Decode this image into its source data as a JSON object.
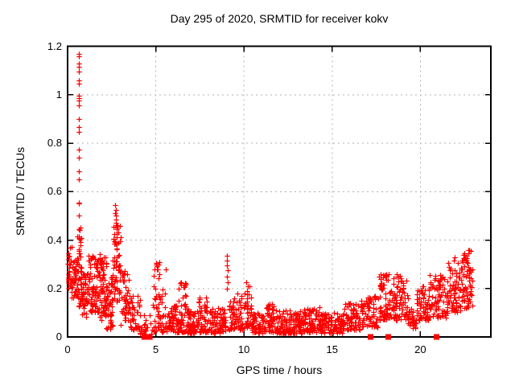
{
  "chart_data": {
    "type": "scatter",
    "title": "Day 295 of 2020, SRMTID for receiver kokv",
    "xlabel": "GPS time / hours",
    "ylabel": "SRMTID / TECUs",
    "xlim": [
      0,
      24
    ],
    "ylim": [
      0,
      1.2
    ],
    "xticks": [
      {
        "v": 0,
        "label": "0"
      },
      {
        "v": 5,
        "label": "5"
      },
      {
        "v": 10,
        "label": "10"
      },
      {
        "v": 15,
        "label": "15"
      },
      {
        "v": 20,
        "label": "20"
      }
    ],
    "yticks": [
      {
        "v": 0,
        "label": "0"
      },
      {
        "v": 0.2,
        "label": "0.2"
      },
      {
        "v": 0.4,
        "label": "0.4"
      },
      {
        "v": 0.6,
        "label": "0.6"
      },
      {
        "v": 0.8,
        "label": "0.8"
      },
      {
        "v": 1.0,
        "label": "1"
      },
      {
        "v": 1.2,
        "label": "1.2"
      }
    ],
    "grid": true,
    "legend": "none",
    "marker": "plus",
    "marker_color": "#ff0000",
    "grid_color": "#b0b0b0",
    "axis_color": "#000000",
    "background": "#ffffff",
    "seed": 1337,
    "highlight_points": [
      [
        0.62,
        1.17
      ],
      [
        0.66,
        1.16
      ],
      [
        0.64,
        1.13
      ],
      [
        0.65,
        1.115
      ],
      [
        0.63,
        1.095
      ],
      [
        0.66,
        1.06
      ],
      [
        0.64,
        1.045
      ],
      [
        0.62,
        0.995
      ],
      [
        0.655,
        0.985
      ],
      [
        0.64,
        0.975
      ],
      [
        0.65,
        0.955
      ],
      [
        0.64,
        0.9
      ],
      [
        0.66,
        0.865
      ],
      [
        0.65,
        0.845
      ],
      [
        0.66,
        0.775
      ],
      [
        0.64,
        0.74
      ],
      [
        0.65,
        0.685
      ],
      [
        0.66,
        0.65
      ],
      [
        0.62,
        0.555
      ],
      [
        0.66,
        0.55
      ],
      [
        0.64,
        0.5
      ],
      [
        0.63,
        0.445
      ],
      [
        0.67,
        0.44
      ],
      [
        0.65,
        0.415
      ],
      [
        2.7,
        0.545
      ],
      [
        2.73,
        0.525
      ],
      [
        2.71,
        0.51
      ],
      [
        2.74,
        0.5
      ],
      [
        2.76,
        0.485
      ],
      [
        2.72,
        0.47
      ],
      [
        2.78,
        0.46
      ],
      [
        2.8,
        0.45
      ],
      [
        9.02,
        0.335
      ],
      [
        9.05,
        0.315
      ],
      [
        9.03,
        0.295
      ],
      [
        9.06,
        0.275
      ],
      [
        9.04,
        0.25
      ],
      [
        9.07,
        0.225
      ],
      [
        9.05,
        0.2
      ],
      [
        5.15,
        0.3
      ],
      [
        5.1,
        0.28
      ],
      [
        5.2,
        0.26
      ],
      [
        10.15,
        0.225
      ],
      [
        10.2,
        0.21
      ],
      [
        18.0,
        0.25
      ],
      [
        18.05,
        0.235
      ],
      [
        22.5,
        0.345
      ],
      [
        22.55,
        0.33
      ],
      [
        21.95,
        0.33
      ],
      [
        21.9,
        0.315
      ],
      [
        22.6,
        0.315
      ]
    ],
    "zero_square_x": [
      4.35,
      4.66,
      17.18,
      18.18,
      20.92
    ],
    "density_bands": [
      [
        0.0,
        0.25,
        0.2,
        0.38,
        30,
        1.0
      ],
      [
        0.2,
        0.6,
        0.16,
        0.34,
        40,
        1.1
      ],
      [
        0.55,
        0.8,
        0.12,
        0.46,
        40,
        1.0
      ],
      [
        0.8,
        1.15,
        0.08,
        0.26,
        40,
        1.2
      ],
      [
        1.15,
        1.8,
        0.1,
        0.34,
        80,
        1.1
      ],
      [
        1.8,
        2.2,
        0.07,
        0.35,
        70,
        1.0
      ],
      [
        2.2,
        2.55,
        0.03,
        0.26,
        40,
        1.2
      ],
      [
        2.55,
        3.0,
        0.14,
        0.46,
        60,
        1.0
      ],
      [
        3.0,
        3.5,
        0.05,
        0.28,
        45,
        1.3
      ],
      [
        3.5,
        4.1,
        0.03,
        0.18,
        40,
        1.3
      ],
      [
        4.1,
        4.85,
        0.01,
        0.09,
        22,
        1.3
      ],
      [
        4.85,
        5.6,
        0.02,
        0.31,
        60,
        1.6
      ],
      [
        5.6,
        6.2,
        0.02,
        0.13,
        55,
        1.4
      ],
      [
        6.2,
        6.8,
        0.02,
        0.23,
        60,
        1.7
      ],
      [
        6.8,
        7.4,
        0.015,
        0.12,
        60,
        1.4
      ],
      [
        7.4,
        8.0,
        0.02,
        0.17,
        60,
        1.5
      ],
      [
        8.0,
        8.95,
        0.015,
        0.12,
        80,
        1.4
      ],
      [
        9.1,
        10.0,
        0.03,
        0.18,
        70,
        1.3
      ],
      [
        10.0,
        10.45,
        0.04,
        0.22,
        35,
        1.5
      ],
      [
        10.45,
        11.2,
        0.015,
        0.1,
        65,
        1.3
      ],
      [
        11.2,
        11.75,
        0.02,
        0.14,
        45,
        1.4
      ],
      [
        11.75,
        13.3,
        0.015,
        0.11,
        130,
        1.3
      ],
      [
        13.3,
        14.3,
        0.02,
        0.13,
        80,
        1.5
      ],
      [
        14.3,
        15.6,
        0.015,
        0.1,
        100,
        1.3
      ],
      [
        15.6,
        16.6,
        0.03,
        0.14,
        75,
        1.3
      ],
      [
        16.6,
        17.6,
        0.04,
        0.17,
        70,
        1.4
      ],
      [
        17.6,
        18.35,
        0.07,
        0.26,
        65,
        1.2
      ],
      [
        18.35,
        19.3,
        0.07,
        0.26,
        80,
        1.3
      ],
      [
        19.3,
        19.75,
        0.03,
        0.13,
        30,
        1.2
      ],
      [
        19.75,
        20.5,
        0.07,
        0.21,
        60,
        1.3
      ],
      [
        20.5,
        21.5,
        0.08,
        0.26,
        75,
        1.3
      ],
      [
        21.5,
        22.3,
        0.1,
        0.31,
        70,
        1.2
      ],
      [
        22.3,
        22.95,
        0.12,
        0.36,
        70,
        1.1
      ]
    ]
  }
}
